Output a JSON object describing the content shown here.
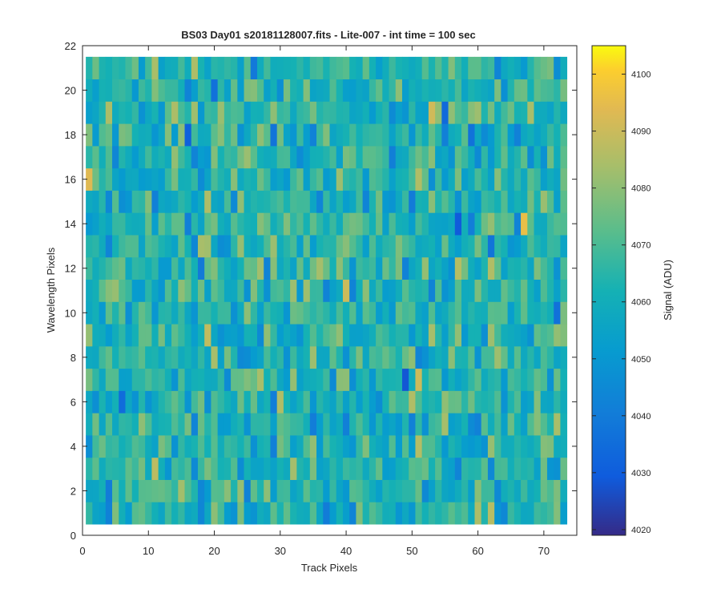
{
  "chart_data": {
    "type": "heatmap",
    "title": "BS03 Day01  s20181128007.fits - Lite-007 - int time = 100 sec",
    "xlabel": "Track Pixels",
    "ylabel": "Wavelength Pixels",
    "xlim": [
      0,
      75
    ],
    "ylim": [
      0,
      22
    ],
    "x_ticks": [
      "0",
      "10",
      "20",
      "30",
      "40",
      "50",
      "60",
      "70"
    ],
    "y_ticks": [
      "0",
      "2",
      "4",
      "6",
      "8",
      "10",
      "12",
      "14",
      "16",
      "18",
      "20",
      "22"
    ],
    "x_cells": {
      "first": 1,
      "last": 73
    },
    "y_cells": {
      "first": 1,
      "last": 21
    },
    "colorbar": {
      "label": "Signal (ADU)",
      "min": 4019,
      "max": 4105,
      "ticks": [
        "4020",
        "4030",
        "4040",
        "4050",
        "4060",
        "4070",
        "4080",
        "4090",
        "4100"
      ],
      "colormap": "parula"
    },
    "signal_distribution": {
      "mean": 4063,
      "std": 10,
      "min": 4019,
      "max": 4105
    }
  }
}
